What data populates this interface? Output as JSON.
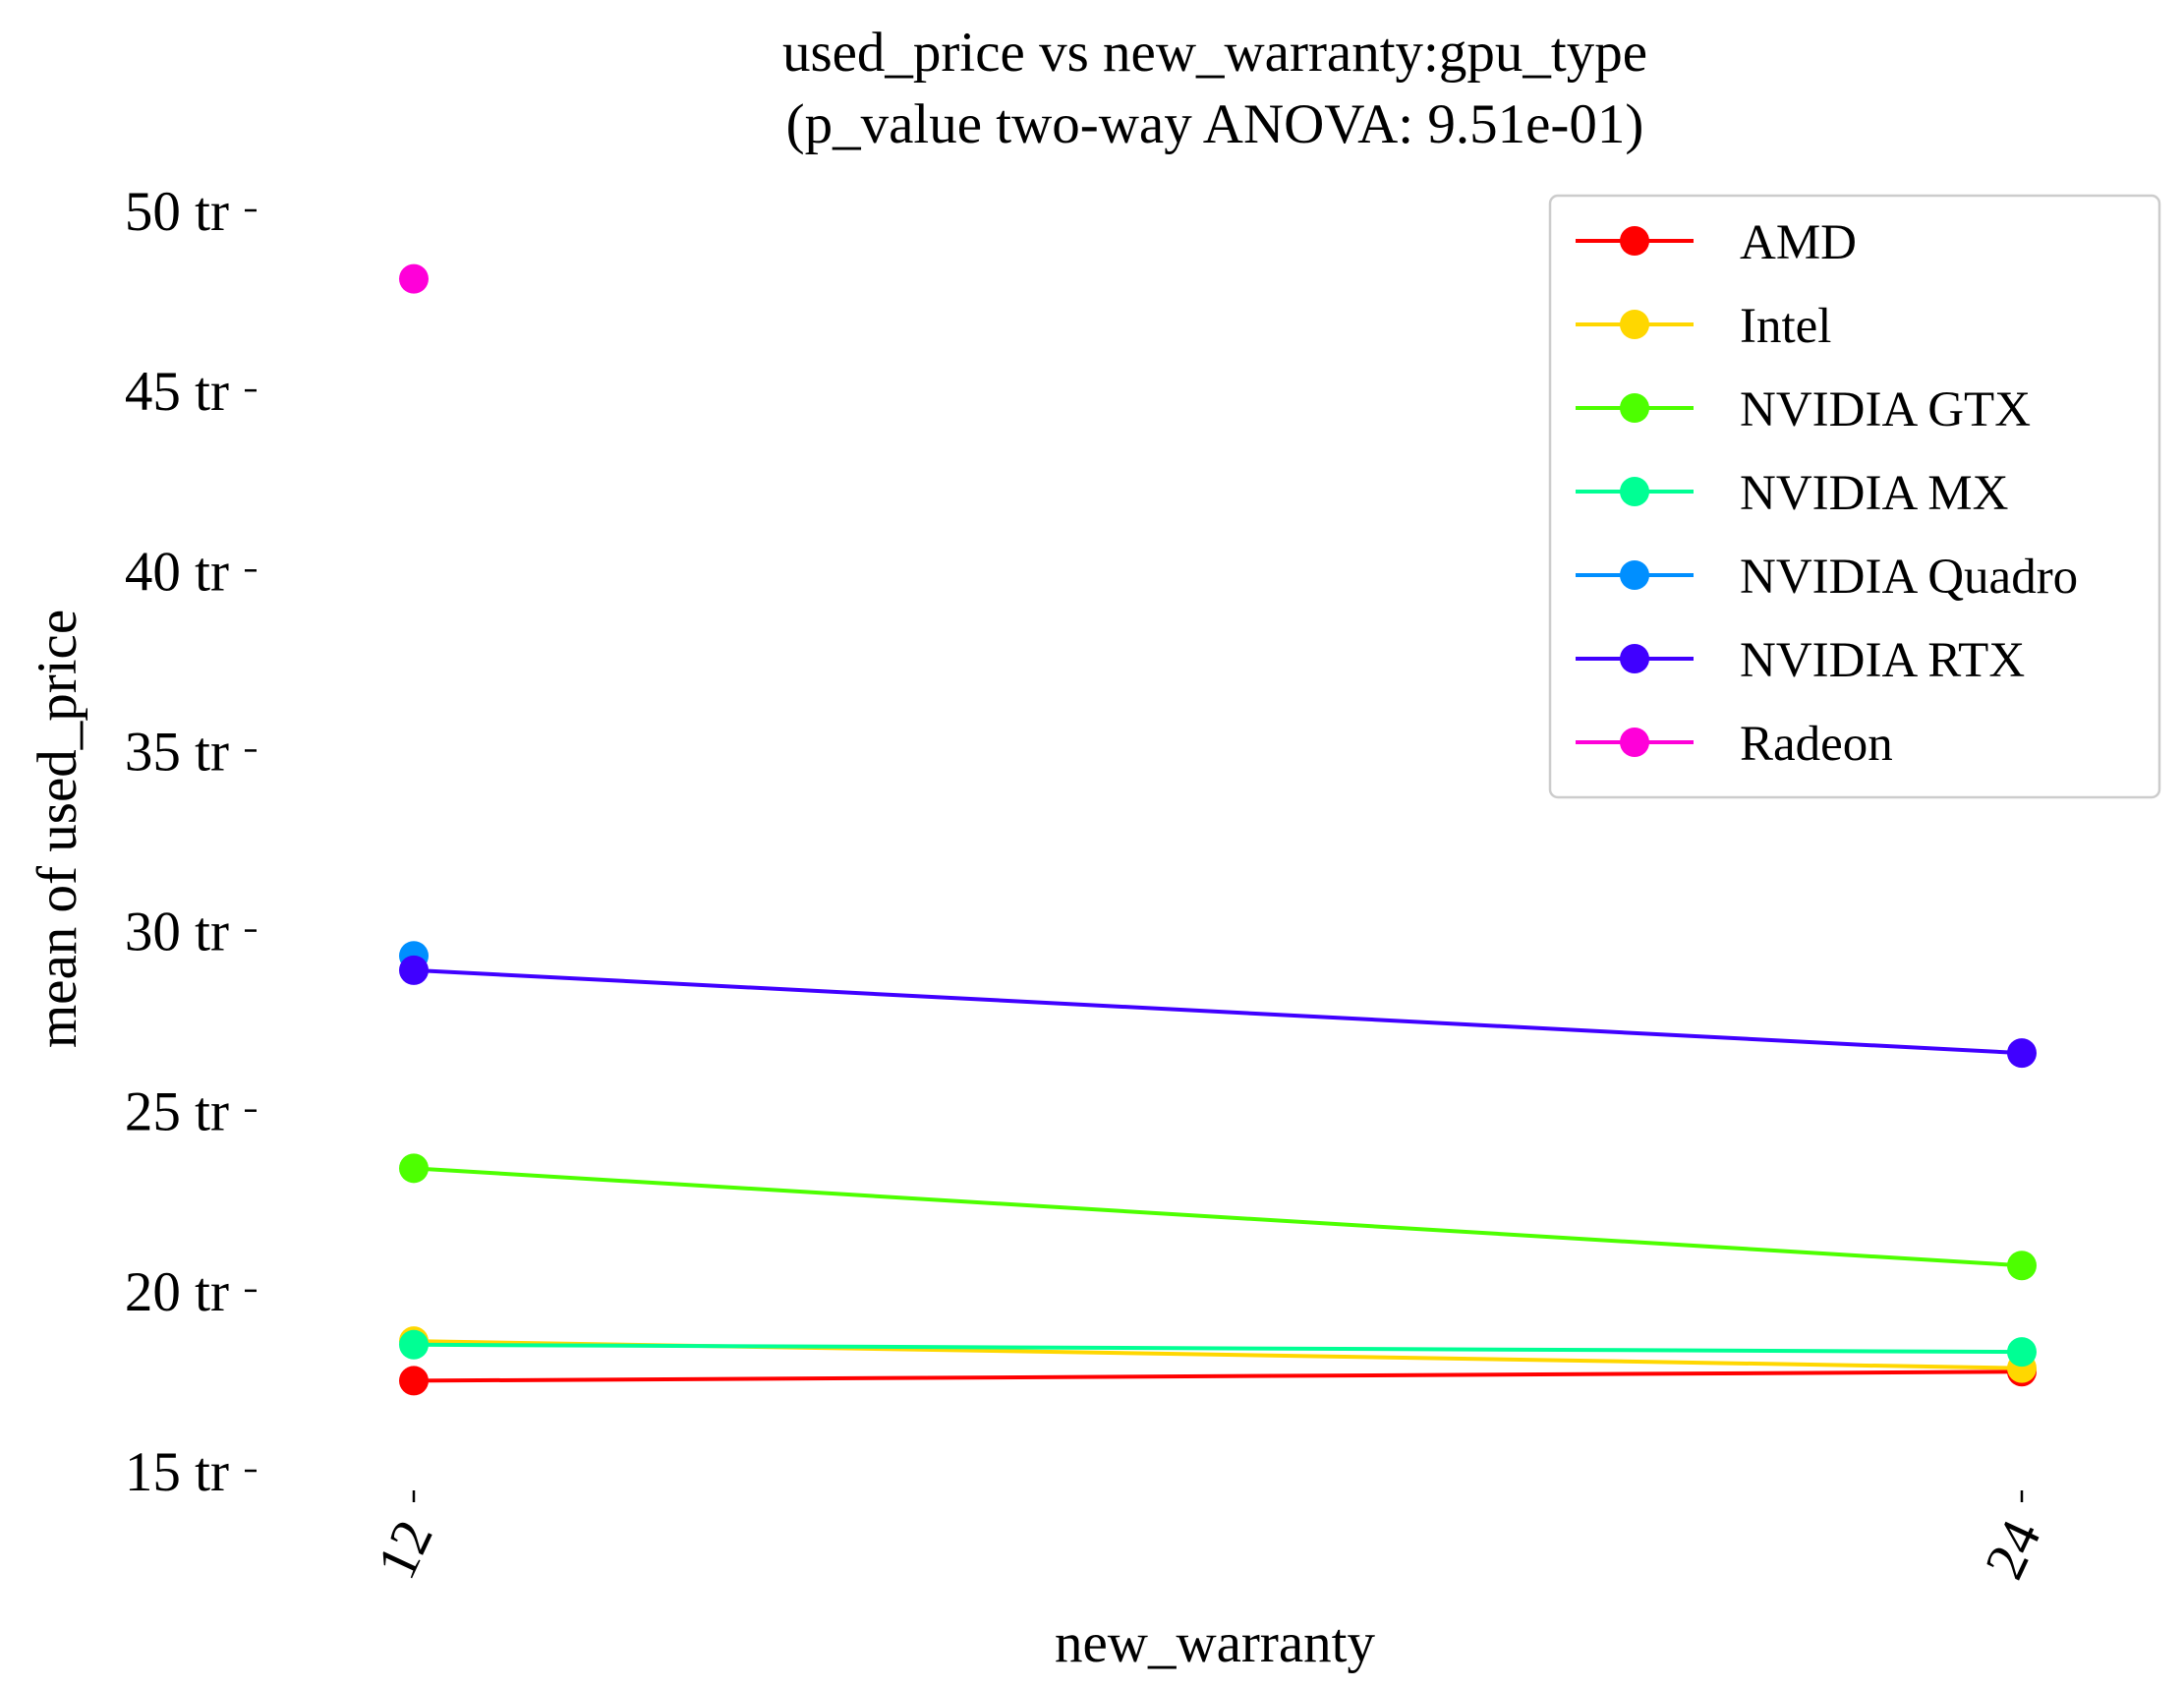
{
  "chart_data": {
    "type": "line",
    "title": [
      "used_price vs new_warranty:gpu_type",
      "(p_value two-way ANOVA: 9.51e-01)"
    ],
    "xlabel": "new_warranty",
    "ylabel": "mean of used_price",
    "categories": [
      "12",
      "24"
    ],
    "ylim": [
      14,
      51
    ],
    "y_ticks": [
      15,
      20,
      25,
      30,
      35,
      40,
      45,
      50
    ],
    "y_tick_suffix": " tr",
    "grid": false,
    "legend_position": "top-right",
    "series": [
      {
        "name": "AMD",
        "color": "#ff0000",
        "values": [
          17.5,
          17.75
        ]
      },
      {
        "name": "Intel",
        "color": "#ffd700",
        "values": [
          18.6,
          17.85
        ]
      },
      {
        "name": "NVIDIA GTX",
        "color": "#4dff00",
        "values": [
          23.4,
          20.7
        ]
      },
      {
        "name": "NVIDIA MX",
        "color": "#00ff94",
        "values": [
          18.5,
          18.3
        ]
      },
      {
        "name": "NVIDIA Quadro",
        "color": "#008fff",
        "values": [
          29.3,
          null
        ]
      },
      {
        "name": "NVIDIA RTX",
        "color": "#4000ff",
        "values": [
          28.9,
          26.6
        ]
      },
      {
        "name": "Radeon",
        "color": "#ff00d9",
        "values": [
          48.1,
          null
        ]
      }
    ]
  }
}
